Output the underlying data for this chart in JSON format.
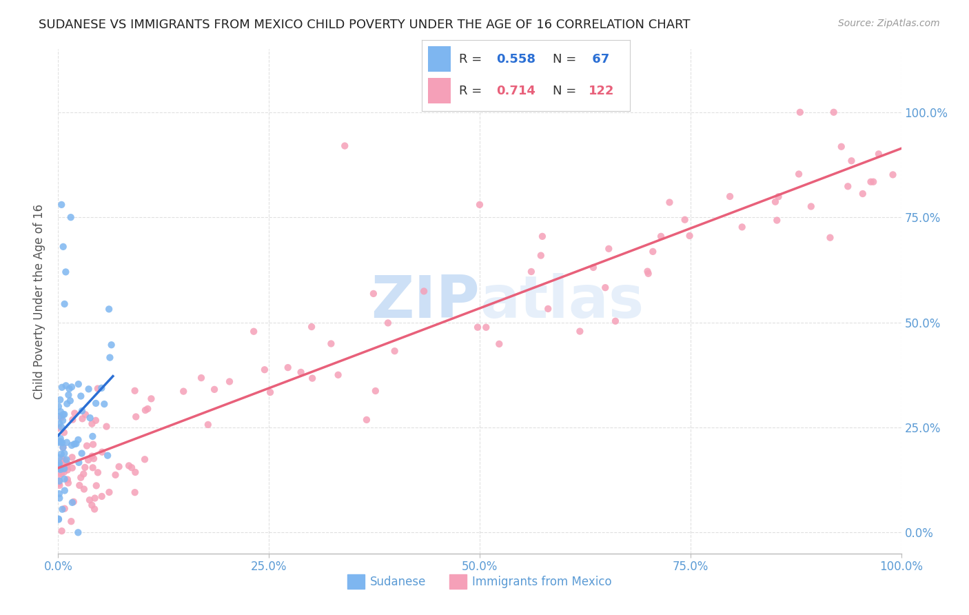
{
  "title": "SUDANESE VS IMMIGRANTS FROM MEXICO CHILD POVERTY UNDER THE AGE OF 16 CORRELATION CHART",
  "source": "Source: ZipAtlas.com",
  "ylabel": "Child Poverty Under the Age of 16",
  "xlim": [
    0,
    1.0
  ],
  "ylim": [
    -0.05,
    1.15
  ],
  "sudanese_R": "0.558",
  "sudanese_N": "67",
  "mexico_R": "0.714",
  "mexico_N": "122",
  "blue_color": "#7EB6F0",
  "pink_color": "#F5A0B8",
  "blue_line_color": "#2B6FD4",
  "pink_line_color": "#E8607A",
  "watermark_zip_color": "#C8DDF5",
  "watermark_atlas_color": "#C8DDF5",
  "background_color": "#FFFFFF",
  "grid_color": "#DDDDDD",
  "tick_label_color": "#5B9BD5",
  "x_tick_vals": [
    0.0,
    0.25,
    0.5,
    0.75,
    1.0
  ],
  "x_tick_labels": [
    "0.0%",
    "25.0%",
    "50.0%",
    "75.0%",
    "100.0%"
  ],
  "y_tick_vals": [
    0.0,
    0.25,
    0.5,
    0.75,
    1.0
  ],
  "y_tick_labels": [
    "0.0%",
    "25.0%",
    "50.0%",
    "75.0%",
    "100.0%"
  ]
}
